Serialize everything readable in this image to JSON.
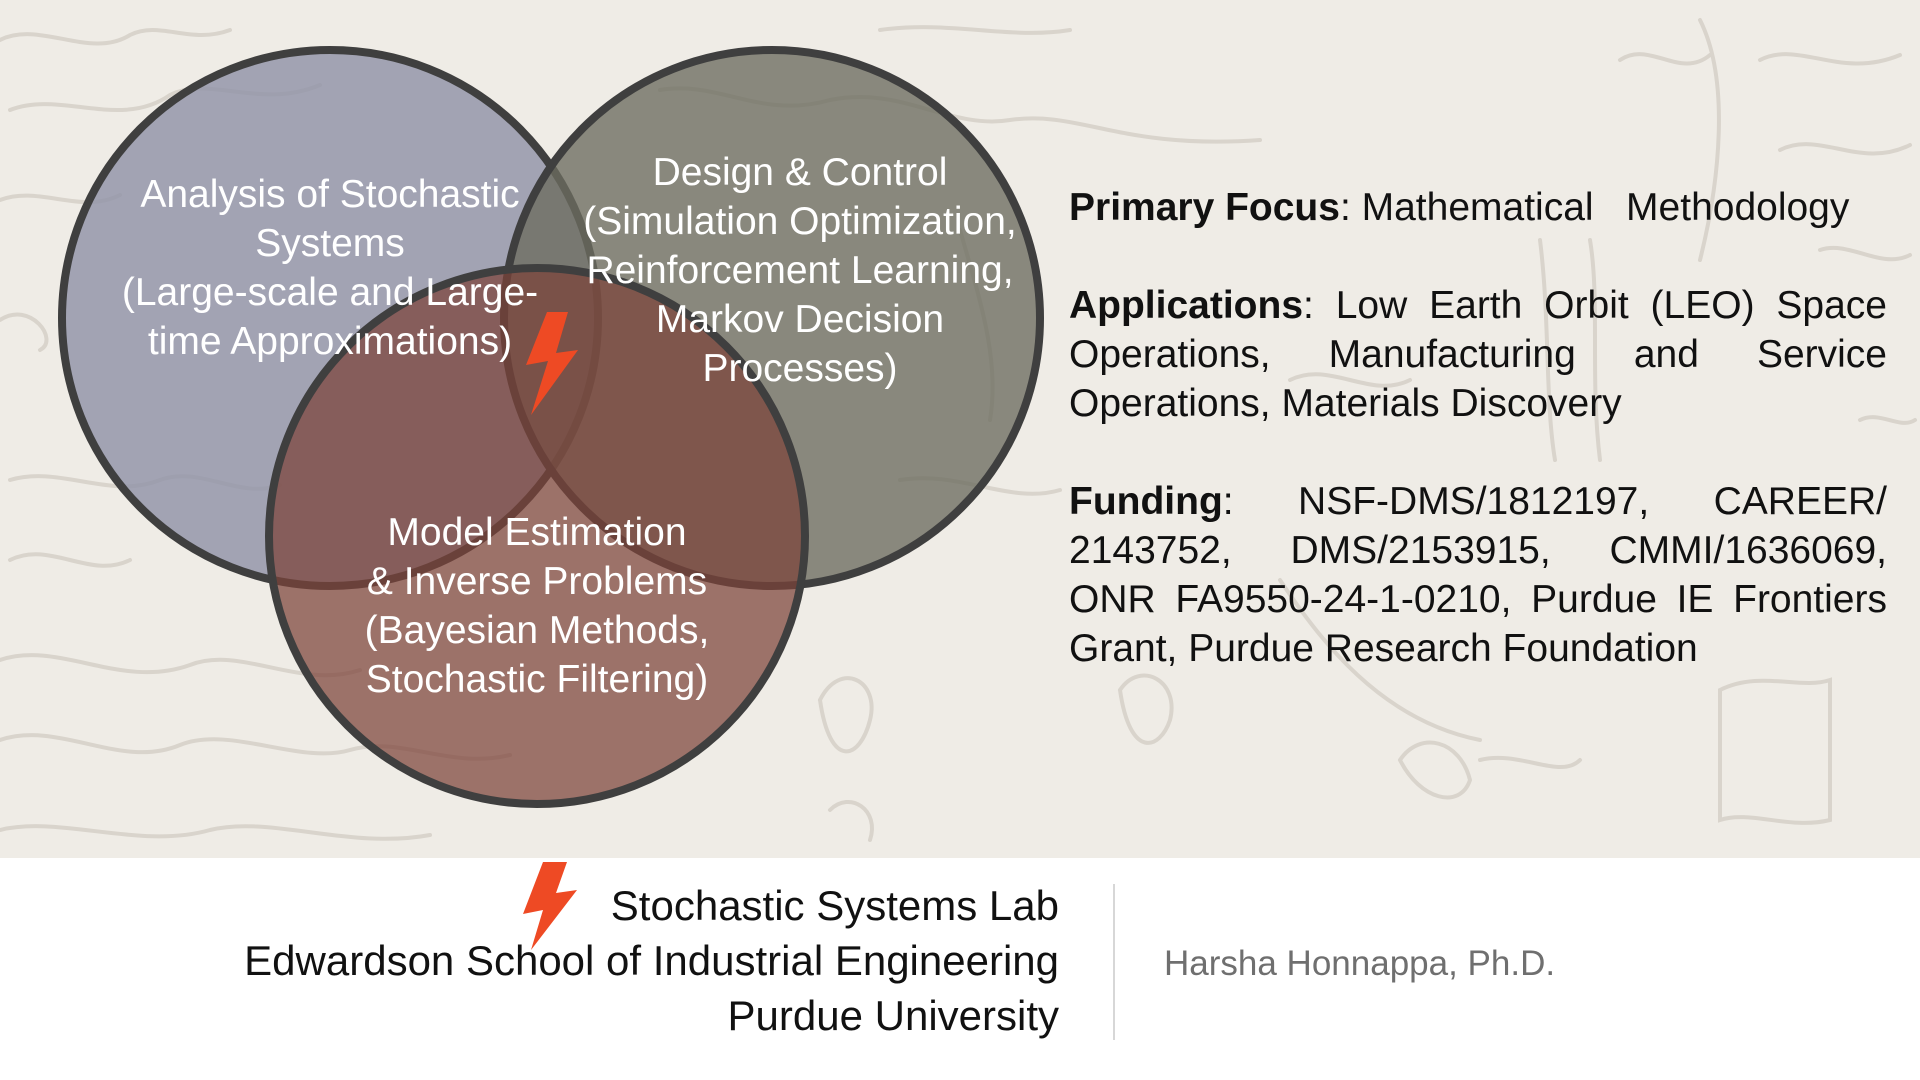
{
  "venn": {
    "circles": [
      {
        "name": "analysis",
        "fill": "#8e91a6",
        "lines": [
          "Analysis of Stochastic",
          "Systems",
          "(Large-scale and Large-",
          "time Approximations)"
        ]
      },
      {
        "name": "design",
        "fill": "#6c6b5f",
        "lines": [
          "Design & Control",
          "(Simulation Optimization,",
          "Reinforcement Learning,",
          "Markov Decision",
          "Processes)"
        ]
      },
      {
        "name": "estimation",
        "fill": "#7c4239",
        "lines": [
          "Model Estimation",
          "& Inverse Problems",
          "(Bayesian Methods,",
          "Stochastic Filtering)"
        ]
      }
    ],
    "outline_color": "#3f3f3f",
    "bolt_icon": "lightning-bolt-icon",
    "bolt_color": "#ee4a24"
  },
  "focus": {
    "label": "Primary Focus",
    "text": "Mathematical   Methodology"
  },
  "applications": {
    "label": "Applications",
    "text": "Low Earth Orbit (LEO) Space Operations, Manufacturing and Service Operations, Materials Discovery"
  },
  "funding": {
    "label": "Funding",
    "text": "NSF-DMS/1812197, CAREER/ 2143752, DMS/2153915, CMMI/1636069, ONR FA9550-24-1-0210, Purdue IE Frontiers Grant, Purdue Research Foundation"
  },
  "footer": {
    "lab_name": "Stochastic Systems Lab",
    "school": "Edwardson School of Industrial Engineering",
    "university": "Purdue University",
    "author": "Harsha Honnappa, Ph.D.",
    "logo_icon": "lightning-bolt-icon",
    "logo_color": "#ee4a24"
  }
}
